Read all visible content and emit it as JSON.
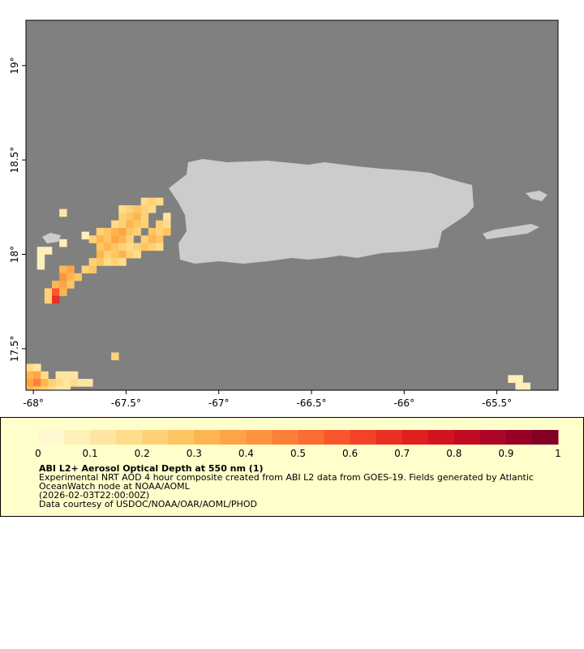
{
  "map": {
    "xlim": [
      -68.04,
      -65.17
    ],
    "ylim": [
      17.28,
      19.24
    ],
    "xticks": [
      {
        "value": -68,
        "label": "-68°"
      },
      {
        "value": -67.5,
        "label": "-67.5°"
      },
      {
        "value": -67,
        "label": "-67°"
      },
      {
        "value": -66.5,
        "label": "-66.5°"
      },
      {
        "value": -66,
        "label": "-66°"
      },
      {
        "value": -65.5,
        "label": "-65.5°"
      }
    ],
    "yticks": [
      {
        "value": 17.5,
        "label": "17.5°"
      },
      {
        "value": 18,
        "label": "18°"
      },
      {
        "value": 18.5,
        "label": "18.5°"
      },
      {
        "value": 19,
        "label": "19°"
      }
    ],
    "cells": [
      [
        -67.4,
        18.28,
        0.15
      ],
      [
        -67.36,
        18.28,
        0.2
      ],
      [
        -67.32,
        18.28,
        0.15
      ],
      [
        -67.52,
        18.24,
        0.15
      ],
      [
        -67.48,
        18.24,
        0.2
      ],
      [
        -67.44,
        18.24,
        0.25
      ],
      [
        -67.4,
        18.24,
        0.2
      ],
      [
        -67.36,
        18.24,
        0.15
      ],
      [
        -67.52,
        18.2,
        0.2
      ],
      [
        -67.48,
        18.2,
        0.25
      ],
      [
        -67.44,
        18.2,
        0.3
      ],
      [
        -67.4,
        18.2,
        0.2
      ],
      [
        -67.28,
        18.2,
        0.1
      ],
      [
        -67.56,
        18.16,
        0.15
      ],
      [
        -67.52,
        18.16,
        0.2
      ],
      [
        -67.48,
        18.16,
        0.3
      ],
      [
        -67.44,
        18.16,
        0.25
      ],
      [
        -67.4,
        18.16,
        0.2
      ],
      [
        -67.32,
        18.16,
        0.2
      ],
      [
        -67.28,
        18.16,
        0.15
      ],
      [
        -67.64,
        18.12,
        0.2
      ],
      [
        -67.6,
        18.12,
        0.25
      ],
      [
        -67.56,
        18.12,
        0.3
      ],
      [
        -67.52,
        18.12,
        0.35
      ],
      [
        -67.48,
        18.12,
        0.25
      ],
      [
        -67.44,
        18.12,
        0.2
      ],
      [
        -67.36,
        18.12,
        0.25
      ],
      [
        -67.32,
        18.12,
        0.2
      ],
      [
        -67.28,
        18.12,
        0.25
      ],
      [
        -67.68,
        18.08,
        0.2
      ],
      [
        -67.64,
        18.08,
        0.3
      ],
      [
        -67.6,
        18.08,
        0.25
      ],
      [
        -67.56,
        18.08,
        0.35
      ],
      [
        -67.52,
        18.08,
        0.3
      ],
      [
        -67.48,
        18.08,
        0.2
      ],
      [
        -67.4,
        18.08,
        0.2
      ],
      [
        -67.36,
        18.08,
        0.3
      ],
      [
        -67.32,
        18.08,
        0.25
      ],
      [
        -67.64,
        18.04,
        0.25
      ],
      [
        -67.6,
        18.04,
        0.3
      ],
      [
        -67.56,
        18.04,
        0.25
      ],
      [
        -67.52,
        18.04,
        0.2
      ],
      [
        -67.48,
        18.04,
        0.15
      ],
      [
        -67.44,
        18.04,
        0.2
      ],
      [
        -67.4,
        18.04,
        0.25
      ],
      [
        -67.36,
        18.04,
        0.2
      ],
      [
        -67.32,
        18.04,
        0.15
      ],
      [
        -67.64,
        18.0,
        0.3
      ],
      [
        -67.6,
        18.0,
        0.2
      ],
      [
        -67.56,
        18.0,
        0.25
      ],
      [
        -67.52,
        18.0,
        0.3
      ],
      [
        -67.48,
        18.0,
        0.2
      ],
      [
        -67.44,
        18.0,
        0.15
      ],
      [
        -67.68,
        17.96,
        0.2
      ],
      [
        -67.64,
        17.96,
        0.25
      ],
      [
        -67.6,
        17.96,
        0.15
      ],
      [
        -67.56,
        17.96,
        0.2
      ],
      [
        -67.52,
        17.96,
        0.15
      ],
      [
        -67.84,
        17.92,
        0.3
      ],
      [
        -67.8,
        17.92,
        0.35
      ],
      [
        -67.72,
        17.92,
        0.2
      ],
      [
        -67.68,
        17.92,
        0.25
      ],
      [
        -67.84,
        17.88,
        0.4
      ],
      [
        -67.8,
        17.88,
        0.3
      ],
      [
        -67.76,
        17.88,
        0.25
      ],
      [
        -67.88,
        17.84,
        0.3
      ],
      [
        -67.84,
        17.84,
        0.35
      ],
      [
        -67.8,
        17.84,
        0.25
      ],
      [
        -67.92,
        17.8,
        0.2
      ],
      [
        -67.88,
        17.8,
        0.55
      ],
      [
        -67.84,
        17.8,
        0.3
      ],
      [
        -67.92,
        17.76,
        0.2
      ],
      [
        -67.88,
        17.76,
        0.65
      ],
      [
        -67.84,
        18.22,
        0.1
      ],
      [
        -67.84,
        18.06,
        0.05
      ],
      [
        -67.72,
        18.1,
        0.05
      ],
      [
        -67.96,
        18.02,
        0.05
      ],
      [
        -67.92,
        18.02,
        0.05
      ],
      [
        -67.96,
        17.98,
        0.05
      ],
      [
        -67.96,
        17.94,
        0.05
      ],
      [
        -68.02,
        17.4,
        0.15
      ],
      [
        -67.98,
        17.4,
        0.1
      ],
      [
        -68.02,
        17.36,
        0.3
      ],
      [
        -67.98,
        17.36,
        0.35
      ],
      [
        -67.94,
        17.36,
        0.15
      ],
      [
        -67.86,
        17.36,
        0.1
      ],
      [
        -67.82,
        17.36,
        0.1
      ],
      [
        -67.78,
        17.36,
        0.1
      ],
      [
        -68.02,
        17.32,
        0.35
      ],
      [
        -67.98,
        17.32,
        0.45
      ],
      [
        -67.94,
        17.32,
        0.3
      ],
      [
        -67.9,
        17.32,
        0.2
      ],
      [
        -67.86,
        17.32,
        0.15
      ],
      [
        -67.82,
        17.32,
        0.1
      ],
      [
        -67.78,
        17.32,
        0.15
      ],
      [
        -67.74,
        17.32,
        0.1
      ],
      [
        -67.7,
        17.32,
        0.1
      ],
      [
        -68.02,
        17.28,
        0.3
      ],
      [
        -67.98,
        17.28,
        0.25
      ],
      [
        -67.94,
        17.28,
        0.2
      ],
      [
        -67.9,
        17.28,
        0.15
      ],
      [
        -67.86,
        17.28,
        0.1
      ],
      [
        -67.82,
        17.28,
        0.1
      ],
      [
        -67.56,
        17.46,
        0.2
      ],
      [
        -65.42,
        17.34,
        0.05
      ],
      [
        -65.38,
        17.34,
        0.05
      ],
      [
        -65.38,
        17.3,
        0.05
      ],
      [
        -65.34,
        17.3,
        0.05
      ]
    ]
  },
  "colorbar": {
    "lim": [
      0,
      1
    ],
    "ticks": [
      0,
      0.1,
      0.2,
      0.3,
      0.4,
      0.5,
      0.6,
      0.7,
      0.8,
      0.9,
      1
    ],
    "colors": [
      "#fff8d0",
      "#ffefb8",
      "#fee6a0",
      "#fedc8a",
      "#fed176",
      "#fec563",
      "#feb54f",
      "#fea446",
      "#fd943f",
      "#fd8038",
      "#fc6c33",
      "#fa562d",
      "#f44228",
      "#ea3023",
      "#e01f1f",
      "#d1141f",
      "#c00b23",
      "#ad0526",
      "#970027",
      "#800026"
    ]
  },
  "caption": {
    "title": "ABI L2+ Aerosol Optical Depth at 550 nm (1)",
    "lines": [
      "Experimental NRT AOD 4 hour composite created from ABI L2 data from GOES-19. Fields generated by Atlantic",
      "OceanWatch node at NOAA/AOML",
      "(2026-02-03T22:00:00Z)",
      "Data courtesy of USDOC/NOAA/OAR/AOML/PHOD"
    ]
  }
}
